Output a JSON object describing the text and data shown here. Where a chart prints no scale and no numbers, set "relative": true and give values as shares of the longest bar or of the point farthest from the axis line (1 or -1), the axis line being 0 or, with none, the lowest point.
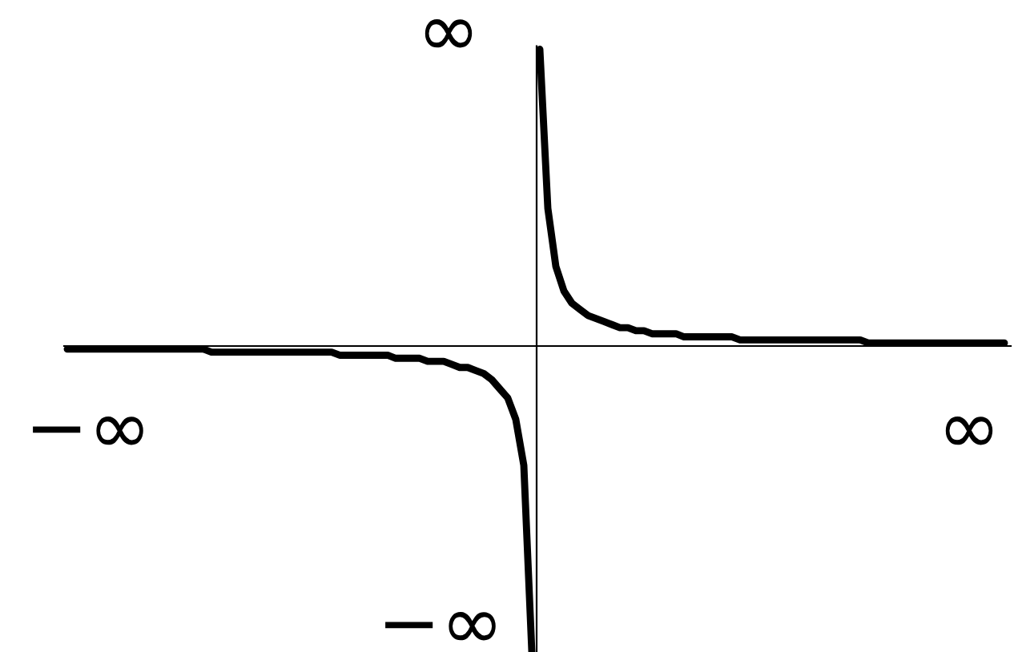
{
  "chart_data": {
    "type": "line",
    "relative": true,
    "line_style": "solid",
    "marker": "none",
    "categories": [
      null,
      null,
      null,
      null,
      null,
      null,
      null,
      null,
      null,
      null,
      null,
      null,
      null,
      null,
      null,
      null,
      null,
      null,
      null,
      null,
      null,
      null,
      null,
      null,
      null,
      null,
      null,
      null,
      null,
      null,
      null,
      null,
      null,
      null,
      null,
      null,
      null,
      null,
      null,
      null,
      null,
      null,
      null,
      null,
      null,
      null,
      null,
      null,
      null,
      null,
      null,
      null,
      null,
      null,
      null,
      null,
      null,
      null,
      null,
      null,
      null,
      null,
      null,
      null,
      null,
      null,
      null,
      null,
      null,
      null,
      null,
      null,
      null,
      null,
      null,
      null,
      null,
      null,
      null,
      null,
      null,
      null,
      null,
      null,
      null,
      null,
      null,
      null,
      null,
      null,
      null,
      null,
      null,
      null,
      null,
      null,
      null,
      null,
      null,
      null,
      null,
      null,
      null,
      null,
      null,
      null,
      null,
      null,
      null,
      null,
      null,
      null,
      null,
      null,
      null,
      null,
      null,
      null
    ],
    "series": [
      {
        "color": "#000000",
        "values": [
          -0.01,
          -0.01,
          -0.01,
          -0.01,
          -0.01,
          -0.01,
          -0.01,
          -0.01,
          -0.01,
          -0.01,
          -0.01,
          -0.01,
          -0.01,
          -0.01,
          -0.01,
          -0.01,
          -0.01,
          -0.01,
          -0.02,
          -0.02,
          -0.02,
          -0.02,
          -0.02,
          -0.02,
          -0.02,
          -0.02,
          -0.02,
          -0.02,
          -0.02,
          -0.02,
          -0.02,
          -0.02,
          -0.02,
          -0.02,
          -0.03,
          -0.03,
          -0.03,
          -0.03,
          -0.03,
          -0.03,
          -0.03,
          -0.04,
          -0.04,
          -0.04,
          -0.04,
          -0.05,
          -0.05,
          -0.05,
          -0.06,
          -0.07,
          -0.07,
          -0.08,
          -0.09,
          -0.11,
          -0.14,
          -0.17,
          -0.24,
          -0.39,
          -1,
          null,
          null,
          null,
          null,
          null,
          null,
          null,
          null,
          null,
          null,
          null,
          null,
          null,
          null,
          null,
          null,
          null,
          null,
          null,
          null,
          null,
          null,
          null,
          null,
          null,
          null,
          null,
          null,
          null,
          null,
          null,
          null,
          null,
          null,
          null,
          null,
          null,
          null,
          null,
          null,
          null,
          null,
          null,
          null,
          null,
          null,
          null,
          null,
          null,
          null,
          null,
          null,
          null,
          null,
          null,
          null,
          null,
          null,
          null
        ]
      },
      {
        "color": "#000000",
        "values": [
          null,
          null,
          null,
          null,
          null,
          null,
          null,
          null,
          null,
          null,
          null,
          null,
          null,
          null,
          null,
          null,
          null,
          null,
          null,
          null,
          null,
          null,
          null,
          null,
          null,
          null,
          null,
          null,
          null,
          null,
          null,
          null,
          null,
          null,
          null,
          null,
          null,
          null,
          null,
          null,
          null,
          null,
          null,
          null,
          null,
          null,
          null,
          null,
          null,
          null,
          null,
          null,
          null,
          null,
          null,
          null,
          null,
          null,
          null,
          0.97,
          0.45,
          0.26,
          0.18,
          0.14,
          0.12,
          0.1,
          0.09,
          0.08,
          0.07,
          0.06,
          0.06,
          0.05,
          0.05,
          0.04,
          0.04,
          0.04,
          0.04,
          0.03,
          0.03,
          0.03,
          0.03,
          0.03,
          0.03,
          0.03,
          0.02,
          0.02,
          0.02,
          0.02,
          0.02,
          0.02,
          0.02,
          0.02,
          0.02,
          0.02,
          0.02,
          0.02,
          0.02,
          0.02,
          0.02,
          0.02,
          0.01,
          0.01,
          0.01,
          0.01,
          0.01,
          0.01,
          0.01,
          0.01,
          0.01,
          0.01,
          0.01,
          0.01,
          0.01,
          0.01,
          0.01,
          0.01,
          0.01,
          0.01
        ]
      }
    ],
    "annotations": [
      "∞",
      "−∞",
      "∞",
      "−∞"
    ]
  }
}
